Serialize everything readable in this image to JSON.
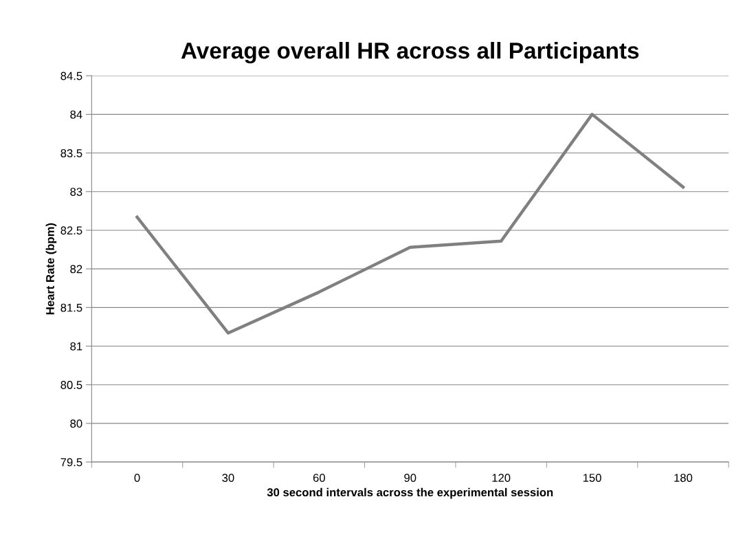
{
  "chart_data": {
    "type": "line",
    "title": "Average overall HR across all Participants",
    "xlabel": "30 second intervals across the experimental session",
    "ylabel": "Heart Rate (bpm)",
    "categories": [
      "0",
      "30",
      "60",
      "90",
      "120",
      "150",
      "180"
    ],
    "series": [
      {
        "color": "#808080",
        "values": [
          82.67,
          81.17,
          81.7,
          82.28,
          82.36,
          84.0,
          83.06
        ]
      }
    ],
    "ylim": [
      79.5,
      84.5
    ],
    "yticks": [
      79.5,
      80,
      80.5,
      81,
      81.5,
      82,
      82.5,
      83,
      83.5,
      84,
      84.5
    ],
    "grid": "y",
    "legend": false,
    "marker": "none",
    "line_style": "solid"
  }
}
